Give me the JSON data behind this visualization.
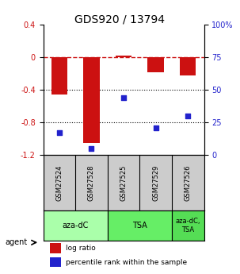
{
  "title": "GDS920 / 13794",
  "samples": [
    "GSM27524",
    "GSM27528",
    "GSM27525",
    "GSM27529",
    "GSM27526"
  ],
  "log_ratios": [
    -0.46,
    -1.05,
    0.02,
    -0.18,
    -0.22
  ],
  "percentile_ranks": [
    17,
    5,
    44,
    21,
    30
  ],
  "groups": [
    {
      "label": "aza-dC",
      "span": [
        0,
        2
      ],
      "color": "#aaffaa"
    },
    {
      "label": "TSA",
      "span": [
        2,
        4
      ],
      "color": "#66ee66"
    },
    {
      "label": "aza-dC,\nTSA",
      "span": [
        4,
        5
      ],
      "color": "#55dd55"
    }
  ],
  "ylim_left": [
    -1.2,
    0.4
  ],
  "ylim_right": [
    0,
    100
  ],
  "left_ticks": [
    0.4,
    0.0,
    -0.4,
    -0.8,
    -1.2
  ],
  "left_tick_labels": [
    "0.4",
    "0",
    "-0.4",
    "-0.8",
    "-1.2"
  ],
  "right_ticks": [
    100,
    75,
    50,
    25,
    0
  ],
  "right_tick_labels": [
    "100%",
    "75",
    "50",
    "25",
    "0"
  ],
  "bar_color": "#cc1111",
  "dot_color": "#2222cc",
  "ref_line_color": "#cc1111",
  "grid_color": "#000000",
  "bg_color": "#ffffff",
  "plot_bg_color": "#ffffff",
  "agent_label": "agent",
  "legend_log_ratio": "log ratio",
  "legend_percentile": "percentile rank within the sample",
  "sample_bg_color": "#cccccc"
}
